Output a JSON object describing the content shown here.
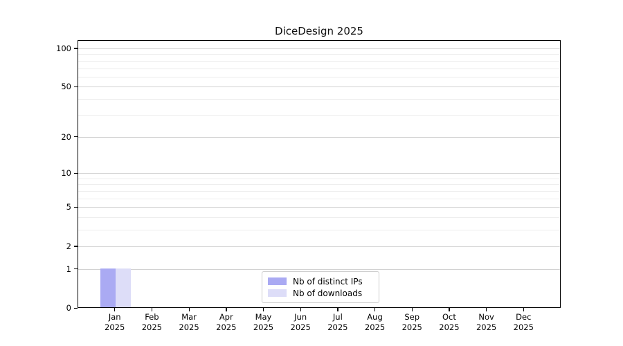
{
  "chart_data": {
    "type": "bar",
    "title": "DiceDesign 2025",
    "xlabel": "",
    "ylabel": "",
    "yscale": "log1p",
    "grid": true,
    "ylim": [
      0,
      116
    ],
    "yticks": [
      0,
      1,
      2,
      5,
      10,
      20,
      50,
      100
    ],
    "minor_yticks": [
      3,
      4,
      6,
      7,
      8,
      9,
      30,
      40,
      60,
      70,
      80,
      90
    ],
    "categories": [
      "Jan 2025",
      "Feb 2025",
      "Mar 2025",
      "Apr 2025",
      "May 2025",
      "Jun 2025",
      "Jul 2025",
      "Aug 2025",
      "Sep 2025",
      "Oct 2025",
      "Nov 2025",
      "Dec 2025"
    ],
    "series": [
      {
        "name": "Nb of distinct IPs",
        "color": "#aaaaf3",
        "values": [
          1,
          0,
          0,
          0,
          0,
          0,
          0,
          0,
          0,
          0,
          0,
          0
        ]
      },
      {
        "name": "Nb of downloads",
        "color": "#ddddf8",
        "values": [
          1,
          0,
          0,
          0,
          0,
          0,
          0,
          0,
          0,
          0,
          0,
          0
        ]
      }
    ],
    "legend_position": "bottom-center-inside",
    "colors": {
      "axis": "#000000",
      "major_grid": "#d2d2d2",
      "minor_grid": "#ededed",
      "legend_border": "#cccccc"
    }
  }
}
